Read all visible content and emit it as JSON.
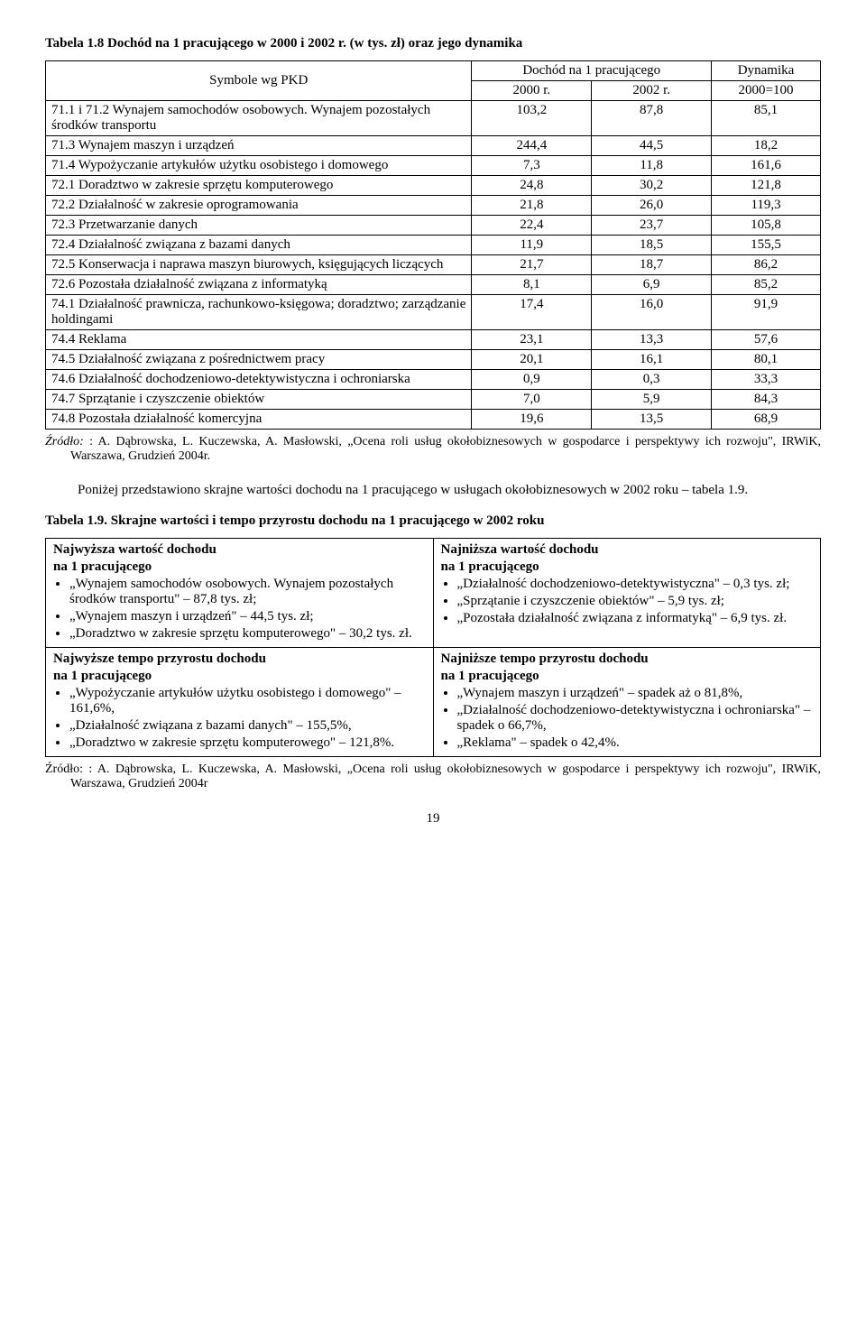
{
  "table1": {
    "title": "Tabela 1.8 Dochód na 1 pracującego w 2000 i 2002 r. (w tys. zł) oraz jego dynamika",
    "header": {
      "col1": "Symbole wg PKD",
      "col2": "Dochód na 1 pracującego",
      "col2a": "2000 r.",
      "col2b": "2002 r.",
      "col3": "Dynamika",
      "col3a": "2000=100"
    },
    "rows": [
      {
        "label": "71.1 i 71.2 Wynajem samochodów osobowych. Wynajem pozostałych środków transportu",
        "v2000": "103,2",
        "v2002": "87,8",
        "dyn": "85,1"
      },
      {
        "label": "71.3 Wynajem maszyn i urządzeń",
        "v2000": "244,4",
        "v2002": "44,5",
        "dyn": "18,2"
      },
      {
        "label": "71.4 Wypożyczanie artykułów użytku osobistego i domowego",
        "v2000": "7,3",
        "v2002": "11,8",
        "dyn": "161,6"
      },
      {
        "label": "72.1 Doradztwo w zakresie sprzętu komputerowego",
        "v2000": "24,8",
        "v2002": "30,2",
        "dyn": "121,8"
      },
      {
        "label": "72.2 Działalność w zakresie oprogramowania",
        "v2000": "21,8",
        "v2002": "26,0",
        "dyn": "119,3"
      },
      {
        "label": "72.3 Przetwarzanie danych",
        "v2000": "22,4",
        "v2002": "23,7",
        "dyn": "105,8"
      },
      {
        "label": "72.4 Działalność związana z bazami danych",
        "v2000": "11,9",
        "v2002": "18,5",
        "dyn": "155,5"
      },
      {
        "label": "72.5 Konserwacja i naprawa maszyn biurowych, księgujących liczących",
        "v2000": "21,7",
        "v2002": "18,7",
        "dyn": "86,2"
      },
      {
        "label": "72.6 Pozostała działalność związana z informatyką",
        "v2000": "8,1",
        "v2002": "6,9",
        "dyn": "85,2"
      },
      {
        "label": "74.1 Działalność prawnicza, rachunkowo-księgowa; doradztwo; zarządzanie holdingami",
        "v2000": "17,4",
        "v2002": "16,0",
        "dyn": "91,9"
      },
      {
        "label": "74.4 Reklama",
        "v2000": "23,1",
        "v2002": "13,3",
        "dyn": "57,6"
      },
      {
        "label": "74.5 Działalność związana z pośrednictwem pracy",
        "v2000": "20,1",
        "v2002": "16,1",
        "dyn": "80,1"
      },
      {
        "label": "74.6 Działalność dochodzeniowo-detektywistyczna i ochroniarska",
        "v2000": "0,9",
        "v2002": "0,3",
        "dyn": "33,3"
      },
      {
        "label": "74.7 Sprzątanie i czyszczenie obiektów",
        "v2000": "7,0",
        "v2002": "5,9",
        "dyn": "84,3"
      },
      {
        "label": "74.8 Pozostała działalność komercyjna",
        "v2000": "19,6",
        "v2002": "13,5",
        "dyn": "68,9"
      }
    ]
  },
  "source1_prefix": "Źródło: ",
  "source1": ": A. Dąbrowska, L. Kuczewska, A. Masłowski, „Ocena roli usług okołobiznesowych w gospodarce i perspektywy ich rozwoju\", IRWiK, Warszawa, Grudzień 2004r.",
  "paragraph": "Poniżej przedstawiono skrajne wartości dochodu na 1 pracującego w usługach okołobiznesowych w 2002 roku – tabela 1.9.",
  "table2": {
    "title": "Tabela 1.9. Skrajne wartości i tempo przyrostu dochodu na 1 pracującego w 2002 roku",
    "cells": {
      "tl": {
        "head1": "Najwyższa wartość dochodu",
        "head2": "na 1 pracującego",
        "items": [
          "„Wynajem samochodów osobowych. Wynajem pozostałych środków transportu\" – 87,8 tys. zł;",
          "„Wynajem maszyn i urządzeń\" – 44,5 tys. zł;",
          "„Doradztwo w zakresie sprzętu komputerowego\" – 30,2 tys. zł."
        ]
      },
      "tr": {
        "head1": "Najniższa wartość dochodu",
        "head2": "na 1 pracującego",
        "items": [
          "„Działalność dochodzeniowo-detektywistyczna\" – 0,3 tys. zł;",
          "„Sprzątanie i czyszczenie obiektów\" – 5,9 tys. zł;",
          "„Pozostała działalność związana z informatyką\" – 6,9 tys. zł."
        ]
      },
      "bl": {
        "head1": "Najwyższe tempo przyrostu dochodu",
        "head2": "na 1 pracującego",
        "items": [
          "„Wypożyczanie artykułów użytku osobistego i domowego\" – 161,6%,",
          "„Działalność związana z bazami danych\" – 155,5%,",
          "„Doradztwo w zakresie sprzętu komputerowego\" – 121,8%."
        ]
      },
      "br": {
        "head1": "Najniższe tempo przyrostu dochodu",
        "head2": "na 1 pracującego",
        "items": [
          "„Wynajem maszyn i urządzeń\" – spadek aż o 81,8%,",
          "„Działalność dochodzeniowo-detektywistyczna i ochroniarska\" – spadek o 66,7%,",
          "„Reklama\" – spadek o 42,4%."
        ]
      }
    }
  },
  "source2": "Źródło: : A. Dąbrowska, L. Kuczewska, A. Masłowski, „Ocena roli usług okołobiznesowych w gospodarce i perspektywy ich rozwoju\", IRWiK, Warszawa, Grudzień 2004r",
  "pagenum": "19"
}
